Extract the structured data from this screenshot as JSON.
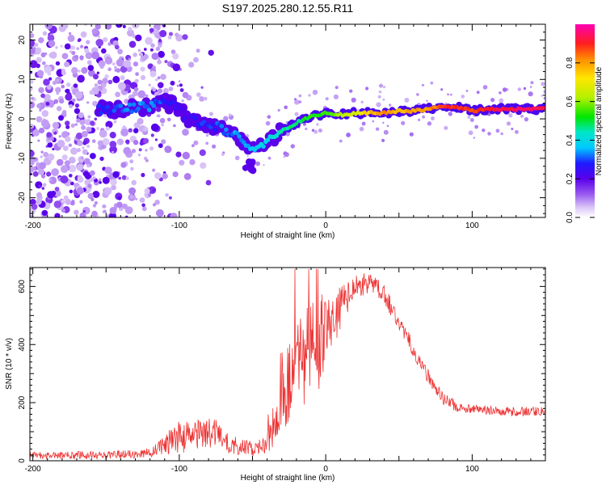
{
  "title": "S197.2025.280.12.55.R11",
  "chart_data": [
    {
      "type": "heatmap",
      "name": "spectrogram",
      "xlabel": "Height of straight line (km)",
      "ylabel": "Frequency (Hz)",
      "xlim": [
        -202,
        150
      ],
      "ylim": [
        -25,
        24
      ],
      "x_ticks": [
        -200,
        -100,
        0,
        100
      ],
      "y_ticks": [
        -20,
        -10,
        0,
        10,
        20
      ],
      "colorbar": {
        "label": "Normalized spectral amplitude",
        "range": [
          0,
          1
        ],
        "ticks": [
          0.0,
          0.2,
          0.4,
          0.6,
          0.8
        ],
        "tick_labels": [
          "0.0",
          "0.2",
          "0.4",
          "0.6",
          "0.8"
        ]
      },
      "ridge": [
        {
          "x": -150,
          "freq": 2.5,
          "amp": 0.28
        },
        {
          "x": -140,
          "freq": 2.5,
          "amp": 0.3
        },
        {
          "x": -125,
          "freq": 3.0,
          "amp": 0.33
        },
        {
          "x": -110,
          "freq": 4.0,
          "amp": 0.28
        },
        {
          "x": -100,
          "freq": 3.0,
          "amp": 0.25
        },
        {
          "x": -95,
          "freq": 0.0,
          "amp": 0.22
        },
        {
          "x": -85,
          "freq": -1.0,
          "amp": 0.27
        },
        {
          "x": -75,
          "freq": -2.0,
          "amp": 0.3
        },
        {
          "x": -65,
          "freq": -3.5,
          "amp": 0.32
        },
        {
          "x": -55,
          "freq": -6.0,
          "amp": 0.34
        },
        {
          "x": -47,
          "freq": -7.5,
          "amp": 0.38
        },
        {
          "x": -40,
          "freq": -6.0,
          "amp": 0.4
        },
        {
          "x": -30,
          "freq": -3.0,
          "amp": 0.45
        },
        {
          "x": -20,
          "freq": -1.0,
          "amp": 0.48
        },
        {
          "x": -10,
          "freq": 0.5,
          "amp": 0.52
        },
        {
          "x": 0,
          "freq": 1.5,
          "amp": 0.55
        },
        {
          "x": 10,
          "freq": 1.0,
          "amp": 0.6
        },
        {
          "x": 20,
          "freq": 1.5,
          "amp": 0.66
        },
        {
          "x": 30,
          "freq": 1.5,
          "amp": 0.76
        },
        {
          "x": 40,
          "freq": 1.5,
          "amp": 0.82
        },
        {
          "x": 50,
          "freq": 2.0,
          "amp": 0.78
        },
        {
          "x": 60,
          "freq": 2.0,
          "amp": 0.8
        },
        {
          "x": 70,
          "freq": 2.5,
          "amp": 0.82
        },
        {
          "x": 80,
          "freq": 3.0,
          "amp": 0.86
        },
        {
          "x": 90,
          "freq": 3.0,
          "amp": 0.9
        },
        {
          "x": 100,
          "freq": 2.0,
          "amp": 0.86
        },
        {
          "x": 110,
          "freq": 2.5,
          "amp": 0.9
        },
        {
          "x": 120,
          "freq": 2.5,
          "amp": 0.92
        },
        {
          "x": 130,
          "freq": 2.5,
          "amp": 0.93
        },
        {
          "x": 140,
          "freq": 2.5,
          "amp": 0.94
        },
        {
          "x": 150,
          "freq": 2.5,
          "amp": 0.95
        }
      ]
    },
    {
      "type": "line",
      "name": "snr",
      "xlabel": "Height of straight line (km)",
      "ylabel": "SNR (10 * v/v)",
      "xlim": [
        -202,
        150
      ],
      "ylim": [
        0,
        665
      ],
      "x_ticks": [
        -200,
        -100,
        0,
        100
      ],
      "y_ticks": [
        0,
        200,
        400,
        600
      ],
      "color": "#ee3333",
      "envelope": {
        "x": [
          -202,
          -150,
          -120,
          -112,
          -105,
          -100,
          -95,
          -85,
          -75,
          -70,
          -65,
          -55,
          -48,
          -42,
          -35,
          -30,
          -25,
          -20,
          -15,
          -10,
          -5,
          0,
          5,
          10,
          15,
          20,
          25,
          30,
          35,
          40,
          50,
          60,
          70,
          80,
          90,
          100,
          110,
          120,
          130,
          140,
          150
        ],
        "mean": [
          18,
          20,
          28,
          48,
          70,
          82,
          80,
          95,
          92,
          70,
          55,
          45,
          40,
          52,
          100,
          175,
          280,
          330,
          360,
          385,
          410,
          445,
          475,
          530,
          560,
          590,
          605,
          612,
          600,
          570,
          475,
          380,
          290,
          215,
          185,
          178,
          172,
          170,
          168,
          170,
          168
        ],
        "noise": [
          12,
          14,
          16,
          30,
          45,
          55,
          55,
          58,
          55,
          40,
          32,
          28,
          25,
          30,
          60,
          90,
          140,
          170,
          185,
          190,
          170,
          120,
          90,
          75,
          55,
          45,
          40,
          35,
          35,
          35,
          32,
          30,
          25,
          20,
          18,
          16,
          16,
          16,
          16,
          16,
          16
        ]
      }
    }
  ]
}
